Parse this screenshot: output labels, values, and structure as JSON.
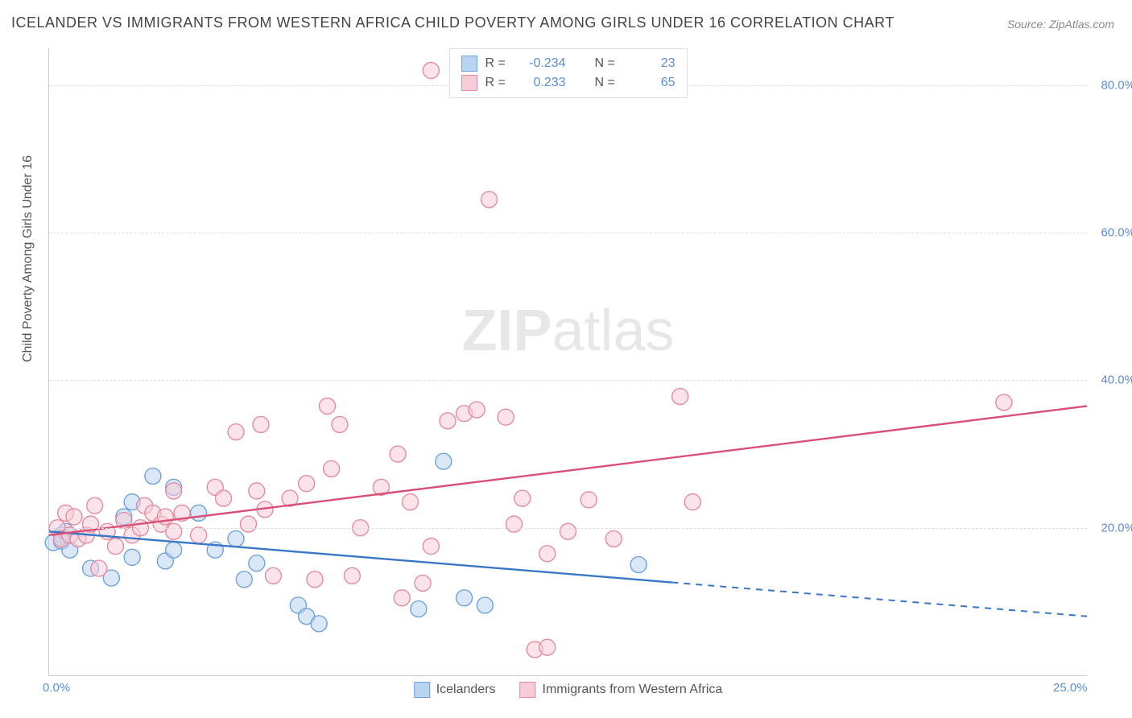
{
  "title": "ICELANDER VS IMMIGRANTS FROM WESTERN AFRICA CHILD POVERTY AMONG GIRLS UNDER 16 CORRELATION CHART",
  "source_label": "Source:",
  "source_value": "ZipAtlas.com",
  "ylabel": "Child Poverty Among Girls Under 16",
  "watermark_bold": "ZIP",
  "watermark_light": "atlas",
  "chart": {
    "type": "scatter",
    "xlim": [
      0,
      25
    ],
    "ylim": [
      0,
      85
    ],
    "x_ticks": [
      {
        "value": 0,
        "label": "0.0%"
      },
      {
        "value": 25,
        "label": "25.0%"
      }
    ],
    "y_ticks": [
      {
        "value": 20,
        "label": "20.0%"
      },
      {
        "value": 40,
        "label": "40.0%"
      },
      {
        "value": 60,
        "label": "60.0%"
      },
      {
        "value": 80,
        "label": "80.0%"
      }
    ],
    "gridlines_y": [
      20,
      40,
      60,
      80
    ],
    "background_color": "#ffffff",
    "grid_color": "#dddddd",
    "axis_color": "#cccccc",
    "series": [
      {
        "name": "Icelanders",
        "color_fill": "#b9d4f0",
        "color_stroke": "#6fa3dc",
        "line_color": "#3a76c6",
        "r_value": "-0.234",
        "n_value": "23",
        "marker_radius": 10,
        "fill_opacity": 0.55,
        "trend_line": {
          "x1": 0,
          "y1": 19.5,
          "x2": 25,
          "y2": 8.0,
          "solid_until_x": 15.0
        },
        "points": [
          [
            0.1,
            18.0
          ],
          [
            0.3,
            19.0
          ],
          [
            0.3,
            18.2
          ],
          [
            0.4,
            19.5
          ],
          [
            0.5,
            17.0
          ],
          [
            1.0,
            14.5
          ],
          [
            1.5,
            13.2
          ],
          [
            1.8,
            21.5
          ],
          [
            2.0,
            16.0
          ],
          [
            2.0,
            23.5
          ],
          [
            2.5,
            27.0
          ],
          [
            2.8,
            15.5
          ],
          [
            3.0,
            25.5
          ],
          [
            3.0,
            17.0
          ],
          [
            3.6,
            22.0
          ],
          [
            4.0,
            17.0
          ],
          [
            4.5,
            18.5
          ],
          [
            4.7,
            13.0
          ],
          [
            5.0,
            15.2
          ],
          [
            6.0,
            9.5
          ],
          [
            6.2,
            8.0
          ],
          [
            6.5,
            7.0
          ],
          [
            8.9,
            9.0
          ],
          [
            9.5,
            29.0
          ],
          [
            10.0,
            10.5
          ],
          [
            10.5,
            9.5
          ],
          [
            14.2,
            15.0
          ]
        ]
      },
      {
        "name": "Immigrants from Western Africa",
        "color_fill": "#f6cdd7",
        "color_stroke": "#e58ba3",
        "line_color": "#d94f77",
        "r_value": "0.233",
        "n_value": "65",
        "marker_radius": 10,
        "fill_opacity": 0.55,
        "trend_line": {
          "x1": 0,
          "y1": 19.0,
          "x2": 25,
          "y2": 36.5,
          "solid_until_x": 25.0
        },
        "points": [
          [
            0.2,
            20.0
          ],
          [
            0.3,
            18.5
          ],
          [
            0.4,
            22.0
          ],
          [
            0.5,
            19.0
          ],
          [
            0.6,
            21.5
          ],
          [
            0.7,
            18.5
          ],
          [
            0.9,
            19.0
          ],
          [
            1.0,
            20.5
          ],
          [
            1.1,
            23.0
          ],
          [
            1.2,
            14.5
          ],
          [
            1.4,
            19.5
          ],
          [
            1.6,
            17.5
          ],
          [
            1.8,
            21.0
          ],
          [
            2.0,
            19.0
          ],
          [
            2.2,
            20.0
          ],
          [
            2.3,
            23.0
          ],
          [
            2.5,
            22.0
          ],
          [
            2.7,
            20.5
          ],
          [
            2.8,
            21.5
          ],
          [
            3.0,
            19.5
          ],
          [
            3.0,
            25.0
          ],
          [
            3.2,
            22.0
          ],
          [
            3.6,
            19.0
          ],
          [
            4.0,
            25.5
          ],
          [
            4.2,
            24.0
          ],
          [
            4.5,
            33.0
          ],
          [
            4.8,
            20.5
          ],
          [
            5.0,
            25.0
          ],
          [
            5.1,
            34.0
          ],
          [
            5.2,
            22.5
          ],
          [
            5.4,
            13.5
          ],
          [
            5.8,
            24.0
          ],
          [
            6.2,
            26.0
          ],
          [
            6.4,
            13.0
          ],
          [
            6.7,
            36.5
          ],
          [
            6.8,
            28.0
          ],
          [
            7.0,
            34.0
          ],
          [
            7.3,
            13.5
          ],
          [
            7.5,
            20.0
          ],
          [
            8.0,
            25.5
          ],
          [
            8.4,
            30.0
          ],
          [
            8.7,
            23.5
          ],
          [
            9.0,
            12.5
          ],
          [
            9.2,
            17.5
          ],
          [
            8.5,
            10.5
          ],
          [
            9.2,
            82.0
          ],
          [
            9.6,
            34.5
          ],
          [
            10.0,
            35.5
          ],
          [
            10.3,
            36.0
          ],
          [
            10.6,
            64.5
          ],
          [
            11.0,
            35.0
          ],
          [
            11.2,
            20.5
          ],
          [
            11.4,
            24.0
          ],
          [
            11.7,
            3.5
          ],
          [
            12.0,
            3.8
          ],
          [
            12.0,
            16.5
          ],
          [
            12.5,
            19.5
          ],
          [
            13.0,
            23.8
          ],
          [
            13.6,
            18.5
          ],
          [
            15.2,
            37.8
          ],
          [
            15.5,
            23.5
          ],
          [
            23.0,
            37.0
          ]
        ]
      }
    ],
    "legend_top": {
      "r_label": "R =",
      "n_label": "N ="
    },
    "legend_bottom_labels": [
      "Icelanders",
      "Immigrants from Western Africa"
    ]
  }
}
